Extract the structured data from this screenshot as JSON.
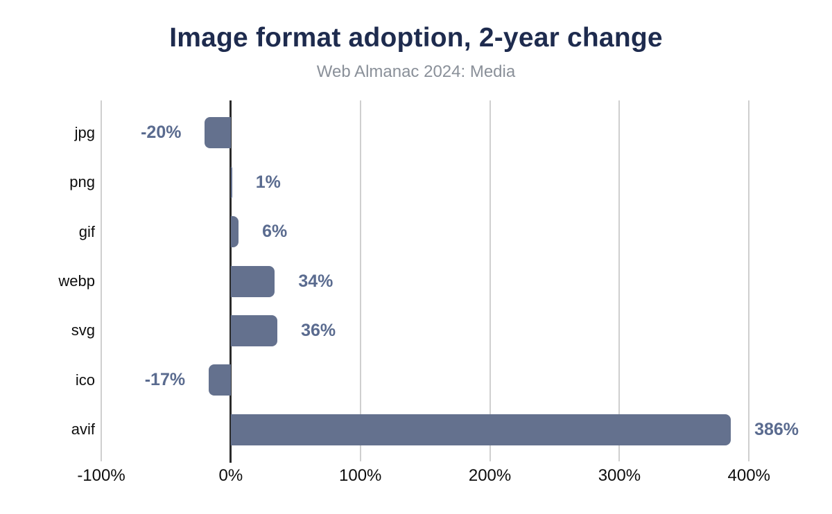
{
  "header": {
    "title": "Image format adoption, 2-year change",
    "subtitle": "Web Almanac 2024: Media"
  },
  "chart_data": {
    "type": "bar",
    "orientation": "horizontal",
    "title": "Image format adoption, 2-year change",
    "subtitle": "Web Almanac 2024: Media",
    "categories": [
      "jpg",
      "png",
      "gif",
      "webp",
      "svg",
      "ico",
      "avif"
    ],
    "values": [
      -20,
      1,
      6,
      34,
      36,
      -17,
      386
    ],
    "value_labels": [
      "-20%",
      "1%",
      "6%",
      "34%",
      "36%",
      "-17%",
      "386%"
    ],
    "xlabel": "",
    "ylabel": "",
    "xlim": [
      -100,
      440
    ],
    "x_ticks": [
      -100,
      0,
      100,
      200,
      300,
      400
    ],
    "x_tick_labels": [
      "-100%",
      "0%",
      "100%",
      "200%",
      "300%",
      "400%"
    ],
    "grid": true,
    "legend": false,
    "unit": "%"
  },
  "colors": {
    "bar": "#64718E",
    "value_label": "#5A6B8F",
    "title": "#1E2B4E",
    "subtitle": "#8A9099",
    "gridline": "#CFCFCF",
    "zero_line": "#2B2B2B",
    "axis_text": "#0D0D0D",
    "background": "#FFFFFF"
  }
}
